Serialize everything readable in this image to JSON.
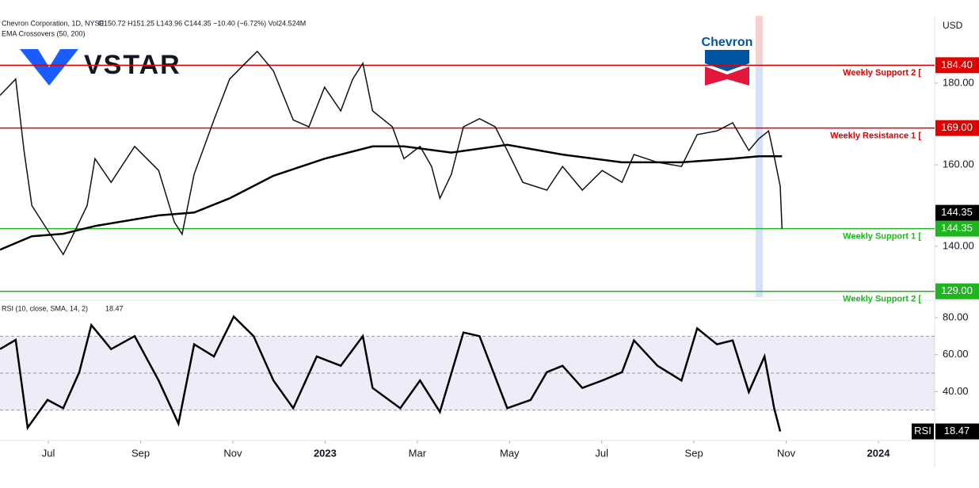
{
  "header": {
    "symbol": "Chevron Corporation, 1D, NYSE",
    "ohlc": "O150.72 H151.25 L143.96 C144.35 −10.40 (−6.72%) Vol24.524M",
    "indicator": "EMA Crossovers (50, 200)",
    "brand": "VSTAR",
    "company": "Chevron",
    "currency": "USD"
  },
  "chart_data": [
    {
      "type": "line",
      "xlim": [
        4.95,
        25.22
      ],
      "ylim": [
        127,
        196.5
      ],
      "yticks": [
        {
          "value": 140,
          "label": "140.00"
        },
        {
          "value": 160,
          "label": "160.00"
        },
        {
          "value": 180,
          "label": "180.00"
        }
      ],
      "series": [
        {
          "name": "Close",
          "color": "#111111",
          "x": [
            4.95,
            5.29,
            5.47,
            5.64,
            5.98,
            6.32,
            6.5,
            6.84,
            7.01,
            7.36,
            7.87,
            8.39,
            8.73,
            8.9,
            9.16,
            9.59,
            9.93,
            10.28,
            10.53,
            10.88,
            11.31,
            11.65,
            11.99,
            12.34,
            12.6,
            12.82,
            13.03,
            13.46,
            13.71,
            14.06,
            14.31,
            14.49,
            14.74,
            15.0,
            15.35,
            15.69,
            15.95,
            16.29,
            16.81,
            17.15,
            17.58,
            18.01,
            18.44,
            18.7,
            19.21,
            19.73,
            20.07,
            20.5,
            20.84,
            21.19,
            21.41,
            21.62,
            21.75,
            21.87,
            21.91
          ],
          "values": [
            177,
            181,
            163.5,
            150,
            144,
            138,
            142,
            150,
            161.5,
            155.7,
            164.5,
            158.6,
            146,
            143,
            157.7,
            171,
            181,
            185,
            187.8,
            183,
            171,
            169.3,
            179,
            173.2,
            181,
            184.9,
            173.2,
            169.3,
            161.5,
            164.5,
            159.6,
            151.8,
            157.7,
            169.3,
            171.3,
            169.3,
            163.5,
            155.7,
            153.8,
            159.6,
            153.8,
            158.6,
            155.7,
            162.5,
            160.6,
            159.6,
            167.4,
            168.3,
            170.3,
            163.5,
            166.4,
            168.3,
            161.5,
            154.8,
            144.35
          ]
        },
        {
          "name": "EMA 200",
          "color": "#000000",
          "x": [
            4.95,
            5.64,
            6.32,
            7.01,
            8.39,
            9.16,
            9.93,
            10.88,
            11.99,
            13.03,
            13.71,
            14.74,
            15.95,
            17.15,
            18.44,
            19.73,
            20.84,
            21.41,
            21.91
          ],
          "values": [
            139.2,
            142.5,
            143.1,
            145,
            147.6,
            148.3,
            151.8,
            157.3,
            161.5,
            164.5,
            164.5,
            163,
            164.9,
            162.5,
            160.6,
            160.6,
            161.5,
            162.1,
            162.1
          ]
        }
      ],
      "levels": [
        {
          "name": "Weekly Support 2 [",
          "value": 184.4,
          "value_label": "184.40",
          "color": "#e00000"
        },
        {
          "name": "Weekly Resistance 1 [",
          "value": 169,
          "value_label": "169.00",
          "color": "#e00000"
        },
        {
          "name": "Weekly Support 1 [",
          "value": 144.35,
          "value_label": "144.35",
          "color": "#1fb51f"
        },
        {
          "name": "Weekly Support 2 [",
          "value": 129,
          "value_label": "129.00",
          "color": "#1fb51f"
        }
      ],
      "last_price": {
        "value": 144.35,
        "label": "144.35"
      }
    },
    {
      "type": "line",
      "title": "RSI (10, close, SMA, 14, 2)",
      "xlim": [
        4.95,
        25.22
      ],
      "ylim": [
        14,
        89
      ],
      "yticks": [
        {
          "value": 40,
          "label": "40.00"
        },
        {
          "value": 60,
          "label": "60.00"
        },
        {
          "value": 80,
          "label": "80.00"
        }
      ],
      "xticks": [
        {
          "value": 6,
          "label": "Jul"
        },
        {
          "value": 8,
          "label": "Sep"
        },
        {
          "value": 10,
          "label": "Nov"
        },
        {
          "value": 12,
          "label": "2023"
        },
        {
          "value": 14,
          "label": "Mar"
        },
        {
          "value": 16,
          "label": "May"
        },
        {
          "value": 18,
          "label": "Jul"
        },
        {
          "value": 20,
          "label": "Sep"
        },
        {
          "value": 22,
          "label": "Nov"
        },
        {
          "value": 24,
          "label": "2024"
        }
      ],
      "band": [
        30,
        70
      ],
      "levels": [
        30,
        50,
        70
      ],
      "series": [
        {
          "name": "RSI",
          "color": "#000000",
          "x": [
            4.95,
            5.29,
            5.55,
            5.98,
            6.32,
            6.67,
            6.93,
            7.36,
            7.87,
            8.39,
            8.82,
            9.16,
            9.59,
            10.02,
            10.45,
            10.88,
            11.31,
            11.82,
            12.34,
            12.82,
            13.03,
            13.63,
            14.06,
            14.49,
            15.0,
            15.35,
            15.95,
            16.46,
            16.81,
            17.15,
            17.58,
            18.01,
            18.44,
            18.7,
            19.21,
            19.73,
            20.07,
            20.5,
            20.84,
            21.19,
            21.53,
            21.74,
            21.87
          ],
          "values": [
            63,
            68,
            20.5,
            35.5,
            31,
            50.5,
            76,
            63,
            70,
            46,
            22.7,
            65.6,
            59,
            80.6,
            70,
            46,
            31,
            59,
            54,
            70,
            42,
            31,
            46,
            29,
            72,
            70,
            31,
            35.5,
            50.5,
            54,
            42,
            46,
            50.5,
            67.7,
            54,
            46,
            74.2,
            65.6,
            67.7,
            39.8,
            59,
            31,
            18.47
          ]
        }
      ],
      "last_value": {
        "name": "RSI",
        "value": 18.47,
        "label": "18.47"
      }
    }
  ]
}
